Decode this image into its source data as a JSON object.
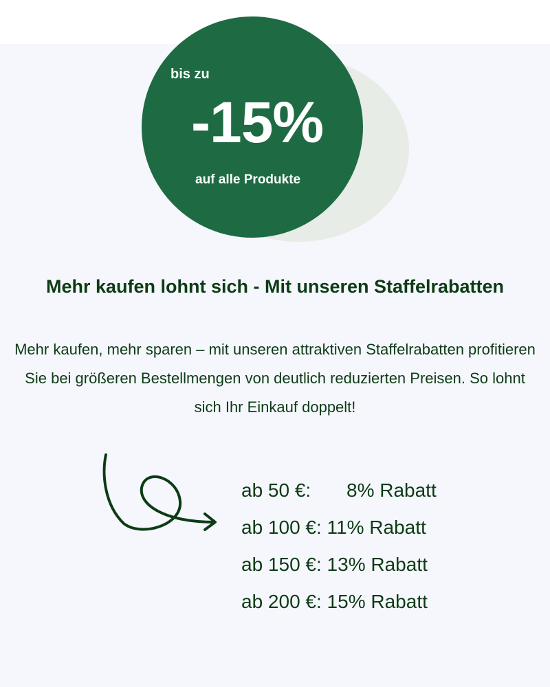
{
  "badge": {
    "prefix": "bis zu",
    "percent": "-15%",
    "suffix": "auf alle Produkte"
  },
  "headline": "Mehr kaufen lohnt sich - Mit unseren Staffelrabatten",
  "description": "Mehr kaufen, mehr sparen – mit unseren attraktiven Staffelrabatten profitieren Sie bei größeren Bestellmengen von deutlich reduzierten Preisen. So lohnt sich Ihr Einkauf doppelt!",
  "tiers": [
    {
      "threshold": "ab 50 €:",
      "discount": "8% Rabatt"
    },
    {
      "threshold": "ab 100 €:",
      "discount": " 11% Rabatt"
    },
    {
      "threshold": "ab 150 €:",
      "discount": " 13% Rabatt"
    },
    {
      "threshold": "ab 200 €:",
      "discount": " 15% Rabatt"
    }
  ],
  "colors": {
    "brand_green": "#1e6b43",
    "text_dark_green": "#0d3b16",
    "background": "#f5f7fc",
    "circle_light": "#e7ece7"
  },
  "icons": {
    "arrow": "curly-arrow-right-icon"
  }
}
